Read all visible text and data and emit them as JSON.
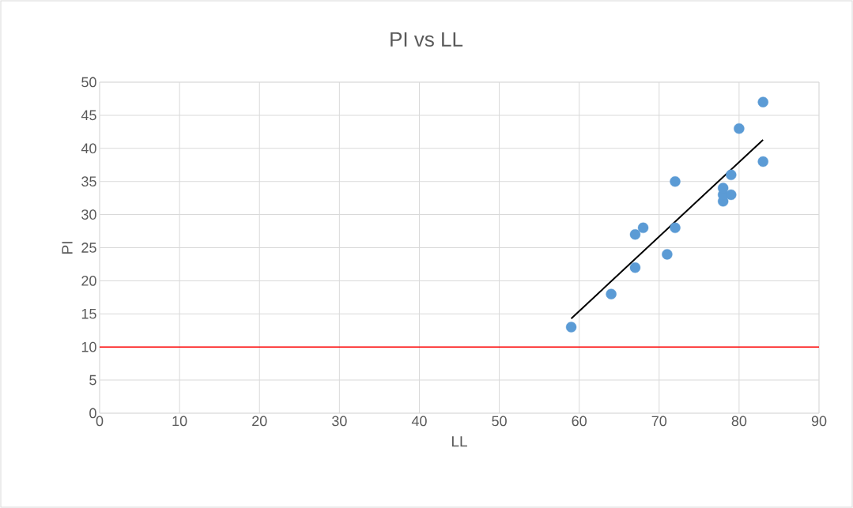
{
  "chart_data": {
    "type": "scatter",
    "title": "PI vs LL",
    "xlabel": "LL",
    "ylabel": "PI",
    "series": [
      {
        "color": "#5b9bd5",
        "x": [
          59,
          64,
          67,
          67,
          68,
          71,
          72,
          72,
          78,
          78,
          78,
          79,
          79,
          80,
          83,
          83
        ],
        "values": [
          13,
          18,
          22,
          27,
          28,
          24,
          28,
          35,
          32,
          33,
          34,
          33,
          36,
          43,
          47,
          38
        ],
        "marker": "circle"
      },
      {
        "type": "line",
        "color": "#000000",
        "x": [
          59,
          83
        ],
        "values": [
          14.3,
          41.3
        ],
        "marker": "none"
      }
    ],
    "ref_lines": [
      {
        "axis": "y",
        "value": 10,
        "color": "#ff0000"
      }
    ],
    "xlim": [
      0,
      90
    ],
    "xticks": [
      0,
      10,
      20,
      30,
      40,
      50,
      60,
      70,
      80,
      90
    ],
    "ylim": [
      0,
      50
    ],
    "yticks": [
      0,
      5,
      10,
      15,
      20,
      25,
      30,
      35,
      40,
      45,
      50
    ],
    "grid": true
  }
}
